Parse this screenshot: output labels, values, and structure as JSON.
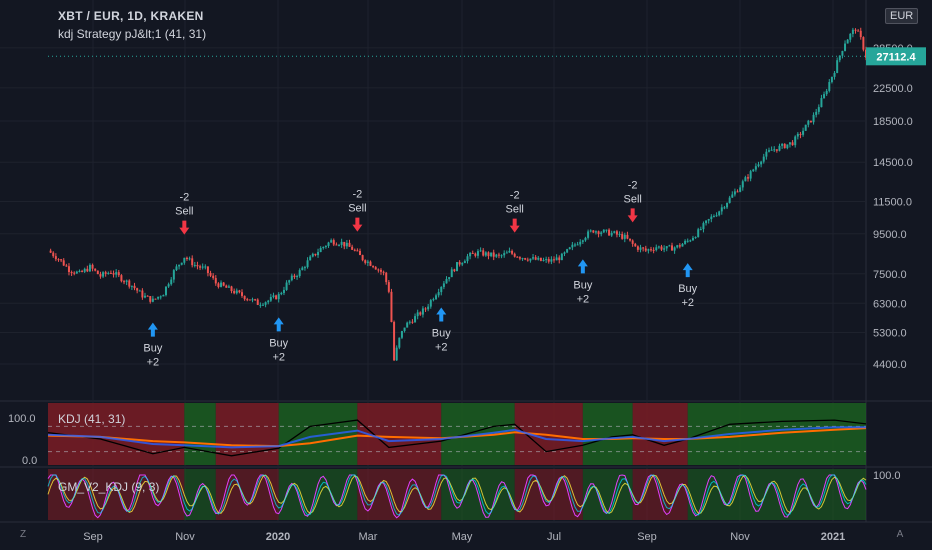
{
  "header": {
    "title": "XBT / EUR, 1D, KRAKEN",
    "strategy": "kdj Strategy pJ&lt;1 (41, 31)",
    "currency": "EUR"
  },
  "price_badge": "27112.4",
  "panes": {
    "kdj_label": "KDJ (41, 31)",
    "gm_label": "GM_V2_KDJ (9, 3)"
  },
  "corner": {
    "left": "Z",
    "right": "A"
  },
  "colors": {
    "background": "#131722",
    "up": "#26a69a",
    "down": "#ef5350",
    "buy": "#2196f3",
    "sell": "#f23645",
    "k_line": "#2962ff",
    "d_line": "#ff6d00",
    "j_line": "#000000",
    "zone_red": "#7a1c24",
    "zone_green": "#1b5e20"
  },
  "chart_data": {
    "type": "line",
    "y_scale": "log",
    "price_ticks": [
      "28500.0",
      "22500.0",
      "18500.0",
      "14500.0",
      "11500.0",
      "9500.0",
      "7500.0",
      "6300.0",
      "5300.0",
      "4400.0"
    ],
    "x_ticks": [
      "Sep",
      "Nov",
      "2020",
      "Mar",
      "May",
      "Jul",
      "Sep",
      "Nov",
      "2021"
    ],
    "price_path": [
      [
        0,
        8600
      ],
      [
        4,
        8200
      ],
      [
        8,
        7700
      ],
      [
        12,
        7500
      ],
      [
        16,
        7800
      ],
      [
        20,
        7400
      ],
      [
        24,
        7600
      ],
      [
        28,
        7300
      ],
      [
        32,
        7000
      ],
      [
        36,
        6600
      ],
      [
        40,
        6400
      ],
      [
        44,
        6700
      ],
      [
        48,
        7600
      ],
      [
        52,
        8300
      ],
      [
        56,
        7900
      ],
      [
        60,
        7700
      ],
      [
        64,
        7100
      ],
      [
        68,
        6900
      ],
      [
        72,
        6700
      ],
      [
        76,
        6500
      ],
      [
        80,
        6300
      ],
      [
        84,
        6400
      ],
      [
        88,
        6600
      ],
      [
        92,
        7200
      ],
      [
        96,
        7600
      ],
      [
        100,
        8200
      ],
      [
        104,
        8700
      ],
      [
        108,
        9100
      ],
      [
        112,
        9000
      ],
      [
        116,
        8700
      ],
      [
        120,
        8200
      ],
      [
        124,
        7900
      ],
      [
        128,
        7500
      ],
      [
        130,
        6800
      ],
      [
        132,
        4500
      ],
      [
        134,
        5100
      ],
      [
        136,
        5500
      ],
      [
        140,
        5800
      ],
      [
        144,
        6100
      ],
      [
        148,
        6700
      ],
      [
        152,
        7300
      ],
      [
        156,
        7900
      ],
      [
        160,
        8300
      ],
      [
        164,
        8500
      ],
      [
        168,
        8400
      ],
      [
        172,
        8300
      ],
      [
        176,
        8500
      ],
      [
        180,
        8300
      ],
      [
        184,
        8200
      ],
      [
        188,
        8100
      ],
      [
        192,
        8100
      ],
      [
        196,
        8300
      ],
      [
        200,
        8800
      ],
      [
        204,
        9300
      ],
      [
        208,
        9700
      ],
      [
        212,
        9600
      ],
      [
        216,
        9500
      ],
      [
        220,
        9300
      ],
      [
        224,
        8800
      ],
      [
        228,
        8600
      ],
      [
        232,
        8800
      ],
      [
        236,
        8700
      ],
      [
        240,
        8800
      ],
      [
        244,
        9100
      ],
      [
        248,
        9600
      ],
      [
        252,
        10300
      ],
      [
        256,
        10900
      ],
      [
        260,
        11700
      ],
      [
        264,
        12600
      ],
      [
        268,
        13600
      ],
      [
        272,
        14800
      ],
      [
        276,
        15600
      ],
      [
        280,
        15900
      ],
      [
        284,
        16300
      ],
      [
        288,
        17500
      ],
      [
        292,
        19000
      ],
      [
        296,
        21500
      ],
      [
        300,
        25000
      ],
      [
        304,
        29500
      ],
      [
        308,
        32000
      ],
      [
        310,
        30000
      ],
      [
        312,
        27112.4
      ]
    ],
    "markers": [
      {
        "type": "buy",
        "label": "Buy",
        "qty": "+2",
        "x": 40
      },
      {
        "type": "sell",
        "label": "Sell",
        "qty": "-2",
        "x": 52
      },
      {
        "type": "buy",
        "label": "Buy",
        "qty": "+2",
        "x": 88
      },
      {
        "type": "sell",
        "label": "Sell",
        "qty": "-2",
        "x": 118
      },
      {
        "type": "buy",
        "label": "Buy",
        "qty": "+2",
        "x": 150
      },
      {
        "type": "sell",
        "label": "Sell",
        "qty": "-2",
        "x": 178
      },
      {
        "type": "buy",
        "label": "Buy",
        "qty": "+2",
        "x": 204
      },
      {
        "type": "sell",
        "label": "Sell",
        "qty": "-2",
        "x": 223
      },
      {
        "type": "buy",
        "label": "Buy",
        "qty": "+2",
        "x": 244
      }
    ],
    "kdj": {
      "ticks": [
        "100.0",
        "0.0"
      ],
      "zones": [
        [
          "red",
          0,
          52
        ],
        [
          "green",
          52,
          64
        ],
        [
          "red",
          64,
          88
        ],
        [
          "green",
          88,
          118
        ],
        [
          "red",
          118,
          150
        ],
        [
          "green",
          150,
          178
        ],
        [
          "red",
          178,
          204
        ],
        [
          "green",
          204,
          223
        ],
        [
          "red",
          223,
          244
        ],
        [
          "green",
          244,
          312
        ]
      ],
      "k": [
        [
          0,
          60
        ],
        [
          20,
          55
        ],
        [
          40,
          38
        ],
        [
          52,
          35
        ],
        [
          70,
          30
        ],
        [
          88,
          33
        ],
        [
          100,
          55
        ],
        [
          118,
          70
        ],
        [
          130,
          45
        ],
        [
          150,
          50
        ],
        [
          170,
          65
        ],
        [
          178,
          72
        ],
        [
          190,
          50
        ],
        [
          204,
          45
        ],
        [
          215,
          52
        ],
        [
          223,
          55
        ],
        [
          235,
          45
        ],
        [
          244,
          50
        ],
        [
          260,
          62
        ],
        [
          280,
          72
        ],
        [
          300,
          78
        ],
        [
          312,
          78
        ]
      ],
      "d": [
        [
          0,
          58
        ],
        [
          20,
          55
        ],
        [
          40,
          45
        ],
        [
          52,
          42
        ],
        [
          70,
          35
        ],
        [
          88,
          33
        ],
        [
          100,
          40
        ],
        [
          118,
          58
        ],
        [
          130,
          55
        ],
        [
          150,
          52
        ],
        [
          170,
          60
        ],
        [
          178,
          66
        ],
        [
          190,
          60
        ],
        [
          204,
          50
        ],
        [
          215,
          50
        ],
        [
          223,
          52
        ],
        [
          235,
          50
        ],
        [
          244,
          50
        ],
        [
          260,
          55
        ],
        [
          280,
          65
        ],
        [
          300,
          72
        ],
        [
          312,
          76
        ]
      ],
      "j": [
        [
          0,
          65
        ],
        [
          20,
          50
        ],
        [
          40,
          15
        ],
        [
          52,
          30
        ],
        [
          70,
          10
        ],
        [
          88,
          28
        ],
        [
          100,
          80
        ],
        [
          118,
          95
        ],
        [
          130,
          30
        ],
        [
          150,
          45
        ],
        [
          170,
          80
        ],
        [
          178,
          85
        ],
        [
          190,
          20
        ],
        [
          204,
          35
        ],
        [
          215,
          55
        ],
        [
          223,
          60
        ],
        [
          235,
          35
        ],
        [
          244,
          50
        ],
        [
          260,
          85
        ],
        [
          280,
          92
        ],
        [
          300,
          95
        ],
        [
          312,
          86
        ]
      ]
    },
    "gm": {
      "ticks": [
        "100.0"
      ]
    }
  }
}
